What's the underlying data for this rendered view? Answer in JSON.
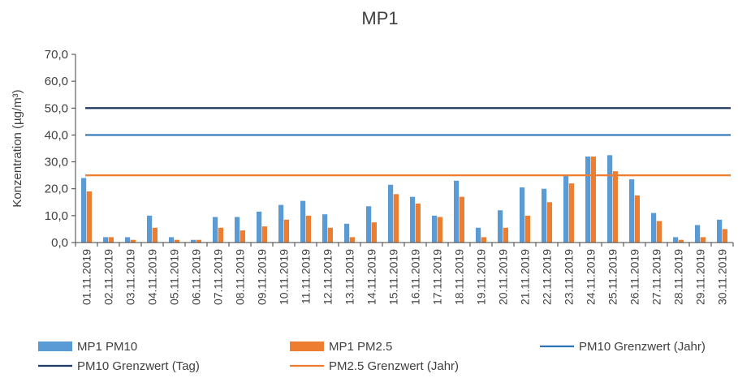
{
  "chart_data": {
    "type": "bar",
    "title": "MP1",
    "xlabel": "",
    "ylabel": "Konzentration (µg/m³)",
    "ylim": [
      0,
      70
    ],
    "yticks": [
      "0,0",
      "10,0",
      "20,0",
      "30,0",
      "40,0",
      "50,0",
      "60,0",
      "70,0"
    ],
    "grid": false,
    "legend_position": "bottom",
    "categories": [
      "01.11.2019",
      "02.11.2019",
      "03.11.2019",
      "04.11.2019",
      "05.11.2019",
      "06.11.2019",
      "07.11.2019",
      "08.11.2019",
      "09.11.2019",
      "10.11.2019",
      "11.11.2019",
      "12.11.2019",
      "13.11.2019",
      "14.11.2019",
      "15.11.2019",
      "16.11.2019",
      "17.11.2019",
      "18.11.2019",
      "19.11.2019",
      "20.11.2019",
      "21.11.2019",
      "22.11.2019",
      "23.11.2019",
      "24.11.2019",
      "25.11.2019",
      "26.11.2019",
      "27.11.2019",
      "28.11.2019",
      "29.11.2019",
      "30.11.2019"
    ],
    "series": [
      {
        "name": "MP1 PM10",
        "kind": "bar",
        "color": "#5b9bd5",
        "values": [
          24.0,
          2.0,
          2.0,
          10.0,
          2.0,
          1.0,
          9.5,
          9.5,
          11.5,
          14.0,
          15.5,
          10.5,
          7.0,
          13.5,
          21.5,
          17.0,
          10.0,
          23.0,
          5.5,
          12.0,
          20.5,
          20.0,
          25.0,
          32.0,
          32.5,
          23.5,
          11.0,
          2.0,
          6.5,
          8.5
        ]
      },
      {
        "name": "MP1 PM2.5",
        "kind": "bar",
        "color": "#ed7d31",
        "values": [
          19.0,
          2.0,
          1.0,
          5.5,
          1.0,
          1.0,
          5.5,
          4.5,
          6.0,
          8.5,
          10.0,
          5.5,
          2.0,
          7.5,
          18.0,
          14.5,
          9.5,
          17.0,
          2.0,
          5.5,
          10.0,
          15.0,
          22.0,
          32.0,
          26.5,
          17.5,
          8.0,
          1.0,
          2.0,
          5.0
        ]
      },
      {
        "name": "PM10 Grenzwert (Jahr)",
        "kind": "line",
        "color": "#2e75b6",
        "value": 40
      },
      {
        "name": "PM10 Grenzwert (Tag)",
        "kind": "line",
        "color": "#1f3864",
        "value": 50
      },
      {
        "name": "PM2.5 Grenzwert (Jahr)",
        "kind": "line",
        "color": "#ed7d31",
        "value": 25
      }
    ]
  }
}
